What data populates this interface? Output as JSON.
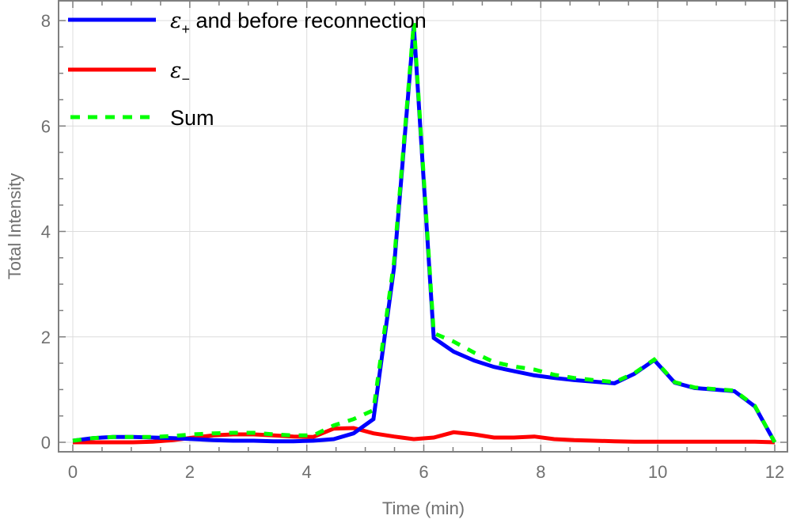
{
  "chart_data": {
    "type": "line",
    "title": "",
    "xlabel": "Time (min)",
    "ylabel": "Total Intensity",
    "xlim": [
      0,
      12
    ],
    "ylim": [
      0,
      8
    ],
    "xticks": [
      0,
      2,
      4,
      6,
      8,
      10,
      12
    ],
    "yticks": [
      0,
      2,
      4,
      6,
      8
    ],
    "grid": true,
    "legend_position": "upper-left inside",
    "x": [
      0,
      0.34,
      0.69,
      1.03,
      1.37,
      1.71,
      2.06,
      2.4,
      2.74,
      3.09,
      3.43,
      3.77,
      4.11,
      4.46,
      4.8,
      5.14,
      5.49,
      5.83,
      6.17,
      6.51,
      6.86,
      7.2,
      7.54,
      7.89,
      8.23,
      8.57,
      8.91,
      9.26,
      9.6,
      9.94,
      10.29,
      10.63,
      10.97,
      11.31,
      11.66,
      12.0
    ],
    "series": [
      {
        "name": "ε+ and before reconnection",
        "legend_main": "ε",
        "legend_sub": "+",
        "legend_rest": " and before reconnection",
        "color": "#0000ff",
        "style": "solid",
        "values": [
          0.03,
          0.08,
          0.1,
          0.1,
          0.09,
          0.08,
          0.06,
          0.04,
          0.03,
          0.03,
          0.02,
          0.02,
          0.03,
          0.06,
          0.17,
          0.44,
          3.3,
          7.9,
          1.98,
          1.72,
          1.55,
          1.43,
          1.35,
          1.27,
          1.22,
          1.18,
          1.15,
          1.12,
          1.3,
          1.56,
          1.13,
          1.03,
          1.0,
          0.97,
          0.68,
          0.0
        ]
      },
      {
        "name": "ε−",
        "legend_main": "ε",
        "legend_sub": "−",
        "legend_rest": "",
        "color": "#ff0000",
        "style": "solid",
        "values": [
          0.0,
          0.0,
          0.0,
          0.0,
          0.01,
          0.04,
          0.09,
          0.13,
          0.15,
          0.15,
          0.13,
          0.11,
          0.1,
          0.26,
          0.27,
          0.17,
          0.11,
          0.06,
          0.09,
          0.19,
          0.15,
          0.09,
          0.09,
          0.11,
          0.06,
          0.04,
          0.03,
          0.02,
          0.01,
          0.01,
          0.01,
          0.01,
          0.01,
          0.01,
          0.01,
          0.0
        ]
      },
      {
        "name": "Sum",
        "legend_main": "Sum",
        "legend_sub": "",
        "legend_rest": "",
        "color": "#00ff00",
        "style": "dashed",
        "values": [
          0.03,
          0.08,
          0.1,
          0.1,
          0.1,
          0.12,
          0.15,
          0.17,
          0.18,
          0.18,
          0.15,
          0.13,
          0.13,
          0.32,
          0.44,
          0.61,
          3.41,
          7.96,
          2.07,
          1.91,
          1.7,
          1.52,
          1.44,
          1.38,
          1.28,
          1.22,
          1.18,
          1.14,
          1.31,
          1.57,
          1.14,
          1.04,
          1.01,
          0.98,
          0.69,
          0.0
        ]
      }
    ]
  }
}
